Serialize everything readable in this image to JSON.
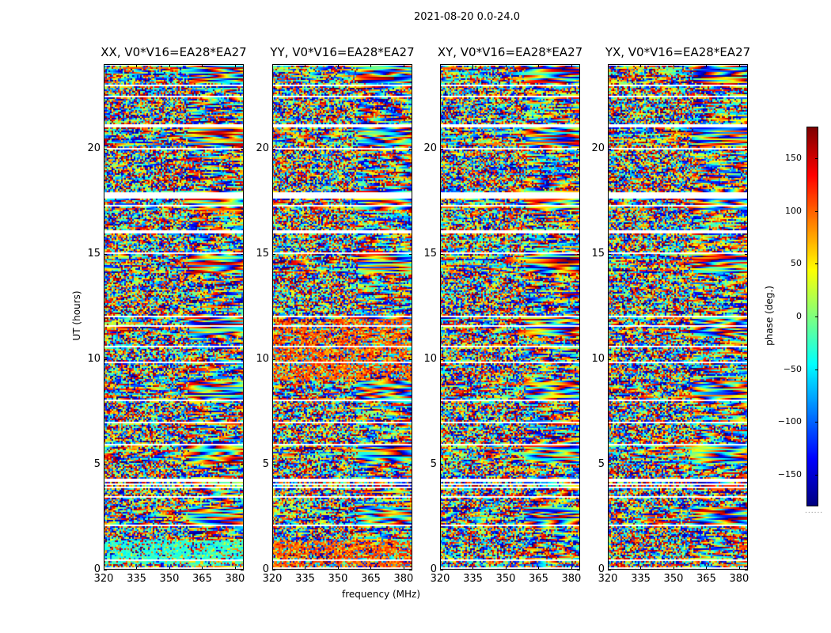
{
  "chart_data": {
    "type": "heatmap",
    "title": "2021-08-20 0.0-24.0",
    "xlabel": "frequency (MHz)",
    "ylabel": "UT (hours)",
    "xlim": [
      320,
      384
    ],
    "ylim": [
      0,
      24
    ],
    "xticks": [
      "320",
      "335",
      "350",
      "365",
      "380"
    ],
    "xtick_values": [
      320,
      335,
      350,
      365,
      380
    ],
    "yticks": [
      "0",
      "5",
      "10",
      "15",
      "20"
    ],
    "ytick_values": [
      0,
      5,
      10,
      15,
      20
    ],
    "panels": [
      {
        "title": "XX, V0*V16=EA28*EA27",
        "seed": 11
      },
      {
        "title": "YY, V0*V16=EA28*EA27",
        "seed": 23
      },
      {
        "title": "XY, V0*V16=EA28*EA27",
        "seed": 37
      },
      {
        "title": "YX, V0*V16=EA28*EA27",
        "seed": 53
      }
    ],
    "flagged_ut_ranges": [
      [
        0.45,
        0.55
      ],
      [
        2.1,
        2.2
      ],
      [
        3.45,
        3.55
      ],
      [
        4.2,
        4.35
      ],
      [
        5.95,
        6.0
      ],
      [
        7.0,
        7.05
      ],
      [
        9.85,
        9.9
      ],
      [
        11.6,
        11.65
      ],
      [
        15.05,
        15.1
      ],
      [
        16.1,
        16.15
      ],
      [
        17.65,
        17.95
      ],
      [
        21.0,
        21.15
      ],
      [
        22.45,
        22.55
      ],
      [
        23.0,
        23.05
      ]
    ],
    "colorbar": {
      "label": "phase (deg.)",
      "colormap": "jet",
      "range": [
        -180,
        180
      ],
      "ticks": [
        "150",
        "100",
        "50",
        "0",
        "−50",
        "−100",
        "−150"
      ],
      "tick_values": [
        150,
        100,
        50,
        0,
        -50,
        -100,
        -150
      ]
    }
  }
}
